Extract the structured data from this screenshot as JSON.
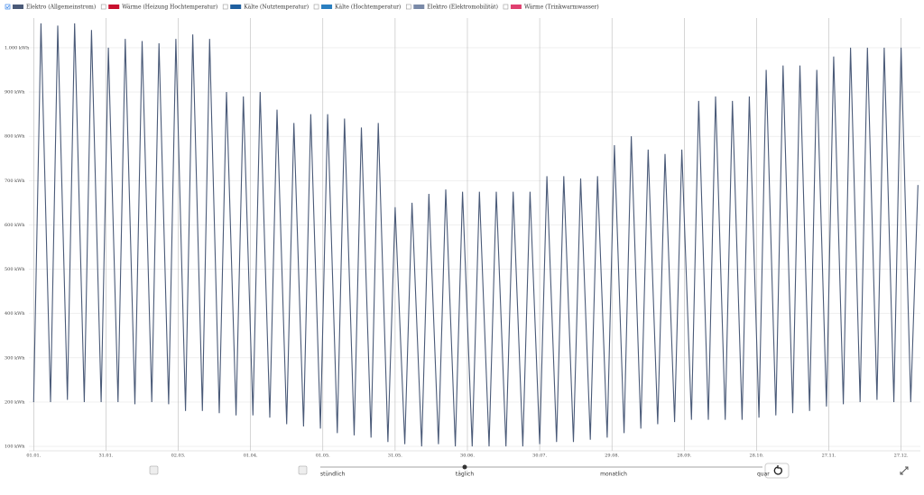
{
  "chart_data": {
    "type": "line",
    "series": [
      {
        "name": "Elektro (Allgemeinstrom)",
        "color": "#4a5a78",
        "checked": true,
        "x": [
          0,
          3,
          7,
          10,
          14,
          17,
          21,
          24,
          28,
          31,
          35,
          38,
          42,
          45,
          49,
          52,
          56,
          59,
          63,
          66,
          70,
          73,
          77,
          80,
          84,
          87,
          91,
          94,
          98,
          101,
          105,
          108,
          112,
          115,
          119,
          122,
          126,
          129,
          133,
          136,
          140,
          143,
          147,
          150,
          154,
          157,
          161,
          164,
          168,
          171,
          175,
          178,
          182,
          185,
          189,
          192,
          196,
          199,
          203,
          206,
          210,
          213,
          217,
          220,
          224,
          227,
          231,
          234,
          238,
          241,
          245,
          248,
          252,
          255,
          259,
          262,
          266,
          269,
          273,
          276,
          280,
          283,
          287,
          290,
          294,
          297,
          301,
          304,
          308,
          311,
          315,
          318,
          322,
          325,
          329,
          332,
          336,
          339,
          343,
          346,
          350,
          353,
          357,
          360,
          364,
          367
        ],
        "values": [
          200,
          1055,
          200,
          1050,
          205,
          1055,
          200,
          1040,
          200,
          1000,
          200,
          1020,
          195,
          1015,
          200,
          1010,
          195,
          1020,
          180,
          1030,
          180,
          1020,
          175,
          900,
          170,
          890,
          170,
          900,
          165,
          860,
          150,
          830,
          145,
          850,
          140,
          850,
          130,
          840,
          125,
          820,
          120,
          830,
          110,
          640,
          105,
          650,
          100,
          670,
          105,
          680,
          100,
          675,
          100,
          675,
          100,
          675,
          100,
          675,
          100,
          675,
          105,
          710,
          110,
          710,
          110,
          705,
          115,
          710,
          120,
          780,
          130,
          800,
          140,
          770,
          150,
          760,
          155,
          770,
          160,
          880,
          160,
          890,
          160,
          880,
          160,
          890,
          165,
          950,
          170,
          960,
          175,
          960,
          180,
          950,
          190,
          980,
          195,
          1000,
          200,
          1000,
          205,
          1000,
          200,
          1000,
          200,
          690
        ]
      },
      {
        "name": "Wärme (Heizung Hochtemperatur)",
        "color": "#c8102e",
        "checked": false
      },
      {
        "name": "Kälte (Nutztemperatur)",
        "color": "#1f5f9f",
        "checked": false
      },
      {
        "name": "Kälte (Hochtemperatur)",
        "color": "#2a7fc0",
        "checked": false
      },
      {
        "name": "Elektro (Elektromobilität)",
        "color": "#7a8aa8",
        "checked": false
      },
      {
        "name": "Wärme (Trinkwarmwasser)",
        "color": "#e04070",
        "checked": false
      }
    ],
    "xlim": [
      -2,
      368
    ],
    "xticks": [
      {
        "value": 0,
        "label": "01.01."
      },
      {
        "value": 30,
        "label": "31.01."
      },
      {
        "value": 60,
        "label": "02.03."
      },
      {
        "value": 90,
        "label": "01.04."
      },
      {
        "value": 120,
        "label": "01.05."
      },
      {
        "value": 150,
        "label": "31.05."
      },
      {
        "value": 180,
        "label": "30.06."
      },
      {
        "value": 210,
        "label": "30.07."
      },
      {
        "value": 240,
        "label": "29.08."
      },
      {
        "value": 270,
        "label": "28.09."
      },
      {
        "value": 300,
        "label": "28.10."
      },
      {
        "value": 330,
        "label": "27.11."
      },
      {
        "value": 360,
        "label": "27.12."
      }
    ],
    "ylim": [
      90,
      1067
    ],
    "yticks": [
      {
        "value": 100,
        "label": "100 kWh"
      },
      {
        "value": 200,
        "label": "200 kWh"
      },
      {
        "value": 300,
        "label": "300 kWh"
      },
      {
        "value": 400,
        "label": "400 kWh"
      },
      {
        "value": 500,
        "label": "500 kWh"
      },
      {
        "value": 600,
        "label": "600 kWh"
      },
      {
        "value": 700,
        "label": "700 kWh"
      },
      {
        "value": 800,
        "label": "800 kWh"
      },
      {
        "value": 900,
        "label": "900 kWh"
      },
      {
        "value": 1000,
        "label": "1.000 kWh"
      }
    ],
    "grid": true
  },
  "controls": {
    "resolutions": [
      "stündlich",
      "täglich",
      "monatlich",
      "quar"
    ],
    "selected": 1
  }
}
